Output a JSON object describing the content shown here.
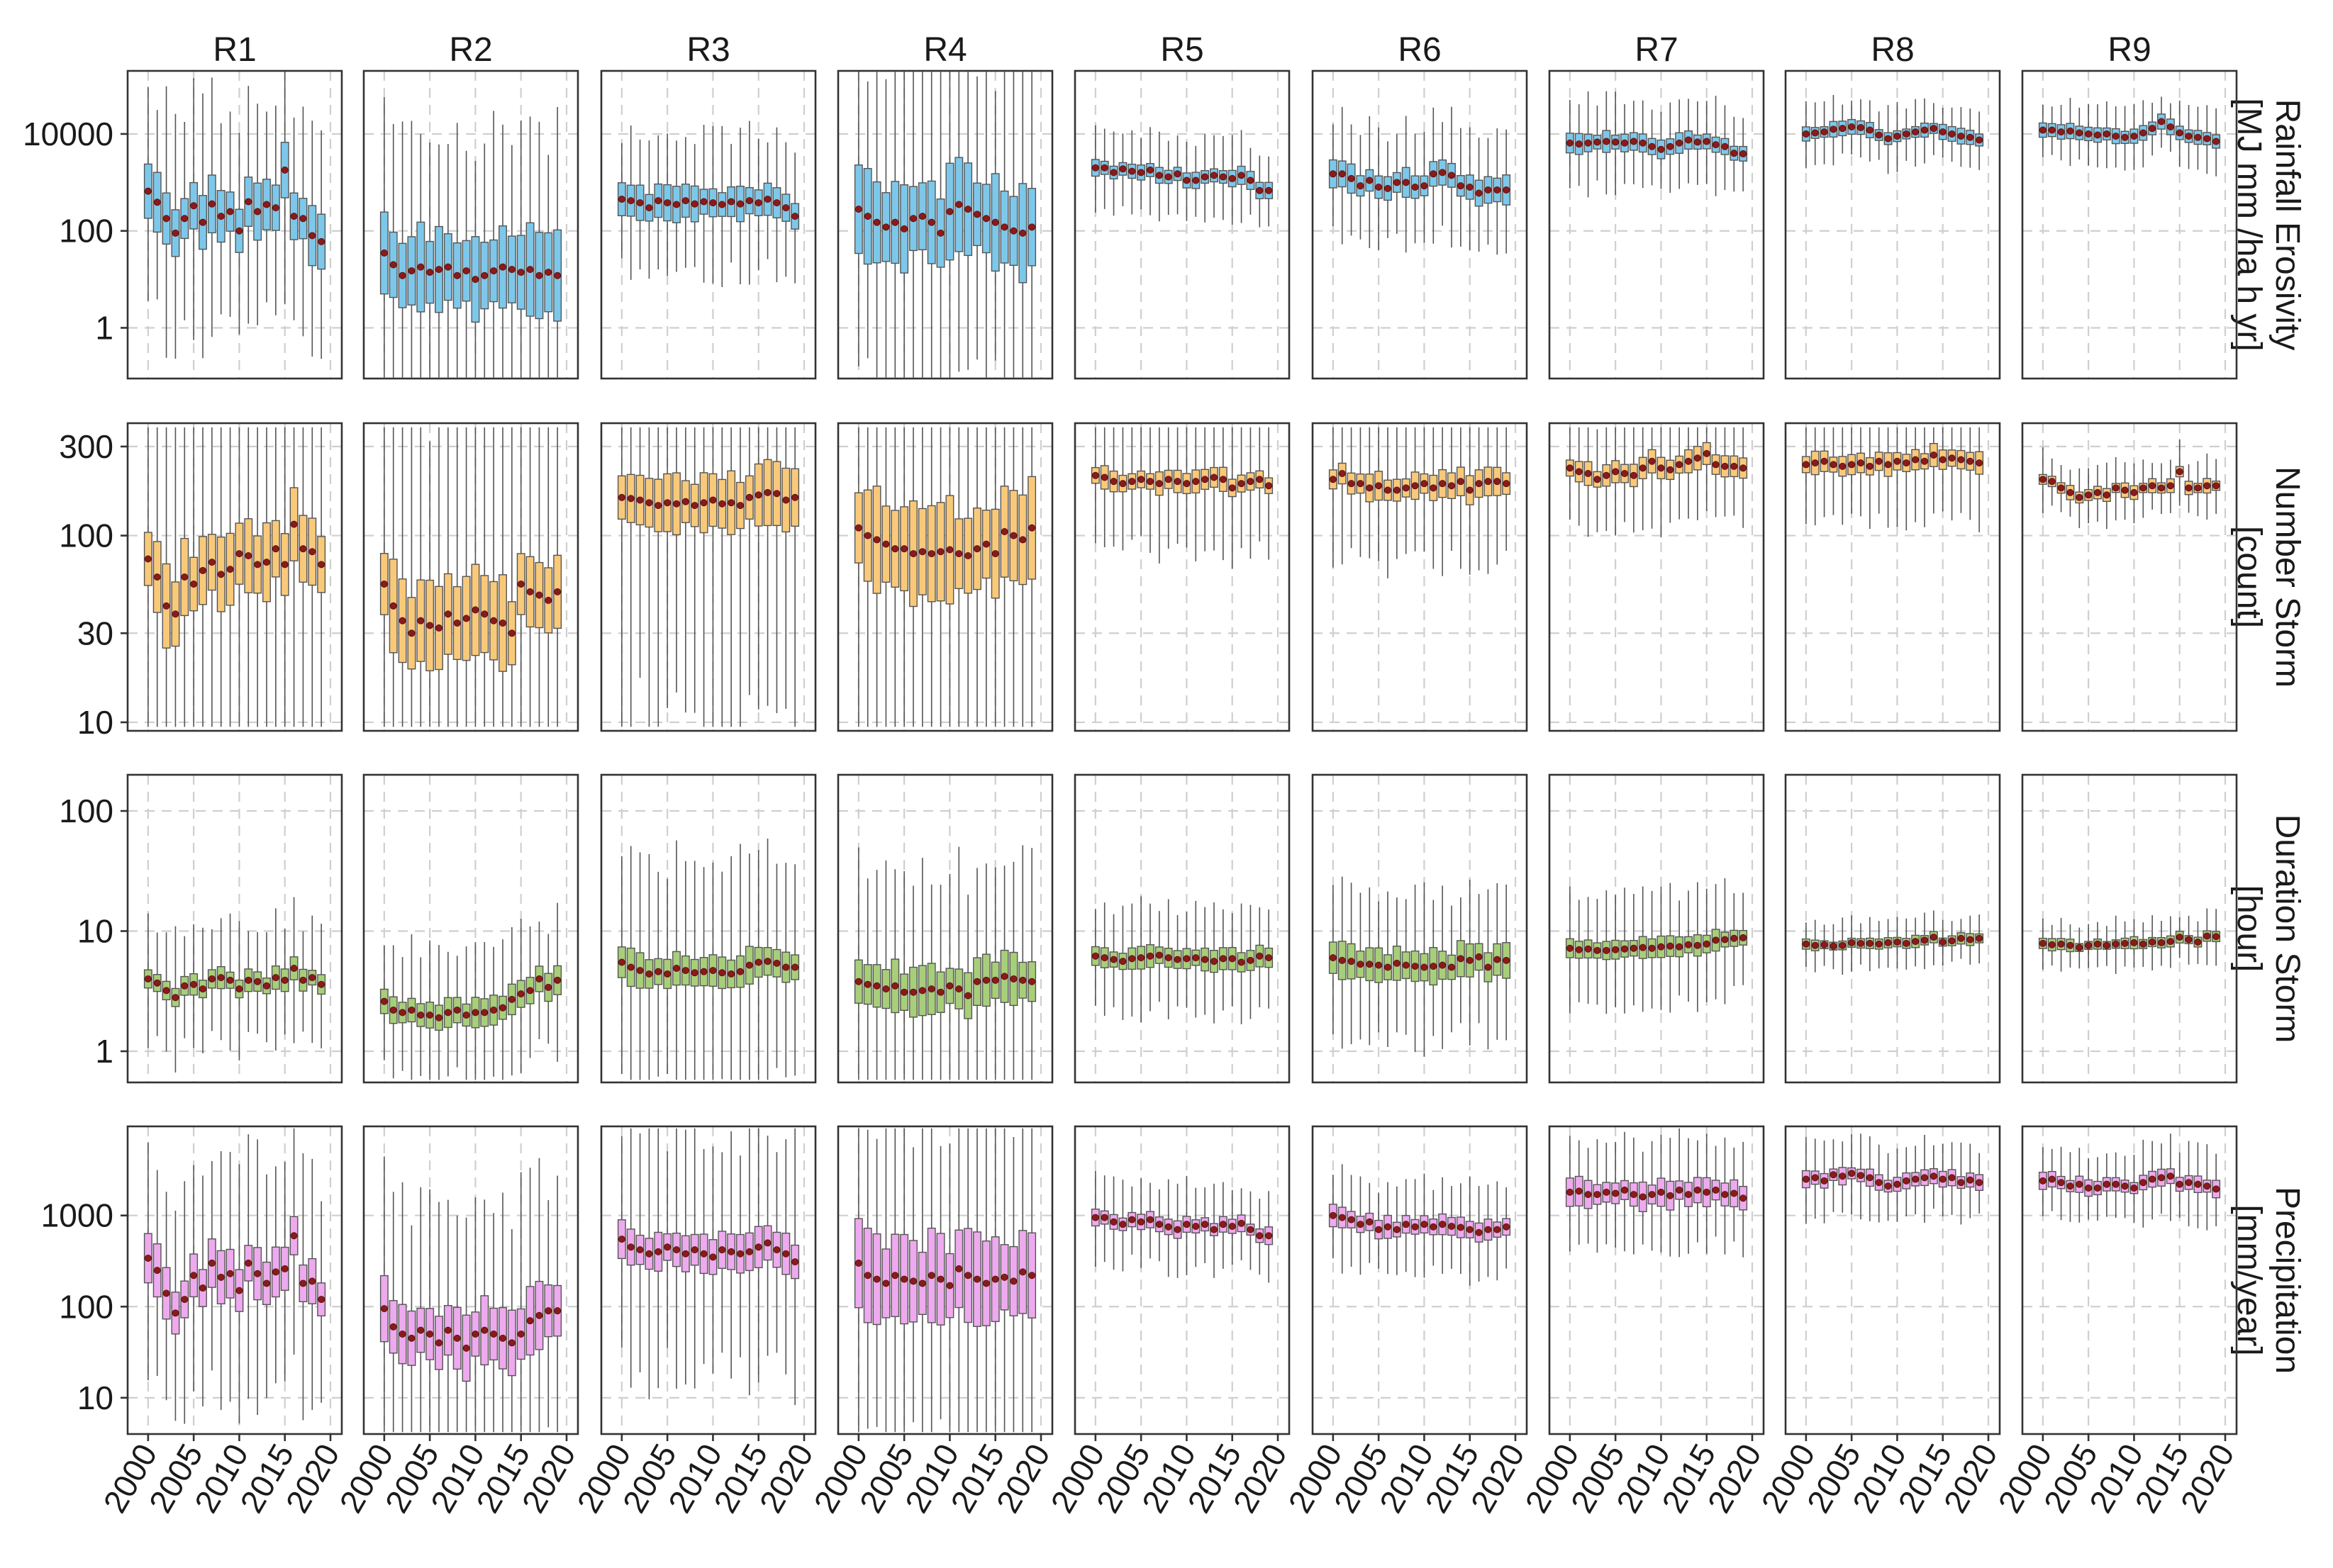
{
  "chart_data": {
    "type": "boxplot",
    "regions": [
      "R1",
      "R2",
      "R3",
      "R4",
      "R5",
      "R6",
      "R7",
      "R8",
      "R9"
    ],
    "years": [
      2000,
      2001,
      2002,
      2003,
      2004,
      2005,
      2006,
      2007,
      2008,
      2009,
      2010,
      2011,
      2012,
      2013,
      2014,
      2015,
      2016,
      2017,
      2018,
      2019
    ],
    "x_ticks": [
      2000,
      2005,
      2010,
      2015,
      2020
    ],
    "x_tick_labels": [
      "2000",
      "2005",
      "2010",
      "2015",
      "2020"
    ],
    "xlim": [
      1999,
      2020
    ],
    "rows": [
      {
        "key": "erosivity",
        "label_lines": [
          "Rainfall Erosivity",
          "[MJ mm /ha h yr]"
        ],
        "scale": "log",
        "ylim": [
          0.09,
          200000
        ],
        "y_ticks": [
          1,
          100,
          10000
        ],
        "y_tick_labels": [
          "1",
          "100",
          "10000"
        ],
        "fill": "#7dc8ea",
        "median_by_region": [
          [
            660,
            390,
            180,
            90,
            180,
            330,
            150,
            360,
            200,
            250,
            100,
            400,
            250,
            350,
            300,
            1800,
            200,
            180,
            80,
            60
          ],
          [
            35,
            20,
            12,
            15,
            18,
            14,
            16,
            18,
            12,
            15,
            10,
            12,
            15,
            18,
            16,
            14,
            16,
            12,
            14,
            12
          ],
          [
            450,
            420,
            380,
            300,
            420,
            380,
            350,
            420,
            360,
            400,
            380,
            350,
            400,
            360,
            420,
            380,
            450,
            380,
            300,
            200
          ],
          [
            280,
            200,
            150,
            120,
            150,
            110,
            180,
            200,
            150,
            90,
            250,
            350,
            280,
            220,
            180,
            150,
            120,
            100,
            90,
            120
          ],
          [
            2000,
            2000,
            1600,
            1900,
            1700,
            1600,
            1800,
            1400,
            1300,
            1500,
            1100,
            1100,
            1300,
            1400,
            1300,
            1200,
            1400,
            1100,
            680,
            680
          ],
          [
            1500,
            1500,
            1200,
            850,
            1100,
            800,
            750,
            1000,
            1000,
            800,
            850,
            1500,
            1600,
            1400,
            850,
            800,
            600,
            700,
            700,
            700
          ],
          [
            6500,
            6200,
            6500,
            6800,
            7000,
            6800,
            6500,
            7000,
            6500,
            5500,
            4800,
            5500,
            6500,
            7500,
            6800,
            7000,
            6000,
            5500,
            4000,
            3900
          ],
          [
            10000,
            10500,
            11000,
            12500,
            13000,
            14000,
            13500,
            12000,
            9500,
            8000,
            9000,
            10000,
            11000,
            12000,
            13000,
            11000,
            10000,
            9000,
            8500,
            7500
          ],
          [
            12000,
            12000,
            11000,
            11500,
            10500,
            10000,
            9500,
            10000,
            9000,
            8500,
            9000,
            10500,
            13000,
            18000,
            14000,
            10500,
            9000,
            8500,
            8000,
            7000
          ]
        ],
        "spread_by_region": [
          [
            1.0,
            2.3
          ],
          [
            1.5,
            3.0
          ],
          [
            0.6,
            1.4
          ],
          [
            1.6,
            3.2
          ],
          [
            0.3,
            0.8
          ],
          [
            0.5,
            1.2
          ],
          [
            0.35,
            0.9
          ],
          [
            0.25,
            0.6
          ],
          [
            0.25,
            0.6
          ]
        ]
      },
      {
        "key": "storm_count",
        "label_lines": [
          "Number Storm",
          "[count]"
        ],
        "scale": "log",
        "ylim": [
          9,
          400
        ],
        "y_ticks": [
          10,
          30,
          100,
          300
        ],
        "y_tick_labels": [
          "10",
          "30",
          "100",
          "300"
        ],
        "fill": "#f9c97a",
        "median_by_region": [
          [
            75,
            60,
            42,
            38,
            60,
            55,
            65,
            72,
            62,
            66,
            80,
            78,
            70,
            72,
            85,
            70,
            115,
            85,
            82,
            70
          ],
          [
            55,
            42,
            35,
            30,
            35,
            33,
            32,
            38,
            34,
            36,
            40,
            38,
            35,
            34,
            30,
            55,
            50,
            48,
            45,
            50
          ],
          [
            160,
            158,
            155,
            150,
            145,
            150,
            148,
            152,
            145,
            150,
            155,
            148,
            150,
            145,
            160,
            165,
            170,
            168,
            155,
            160
          ],
          [
            110,
            100,
            95,
            90,
            85,
            85,
            80,
            82,
            80,
            82,
            84,
            80,
            78,
            85,
            90,
            80,
            105,
            100,
            95,
            110
          ],
          [
            210,
            205,
            195,
            190,
            195,
            200,
            195,
            190,
            200,
            195,
            190,
            195,
            200,
            205,
            200,
            180,
            190,
            195,
            200,
            185
          ],
          [
            200,
            215,
            190,
            190,
            180,
            185,
            175,
            175,
            180,
            185,
            190,
            180,
            190,
            185,
            195,
            175,
            190,
            195,
            195,
            190
          ],
          [
            230,
            220,
            215,
            200,
            210,
            220,
            215,
            210,
            230,
            250,
            230,
            225,
            240,
            250,
            260,
            275,
            240,
            235,
            235,
            230
          ],
          [
            240,
            245,
            250,
            240,
            235,
            240,
            245,
            235,
            250,
            240,
            250,
            245,
            255,
            250,
            270,
            255,
            260,
            255,
            250,
            245
          ],
          [
            200,
            195,
            180,
            170,
            160,
            165,
            170,
            165,
            180,
            175,
            170,
            180,
            185,
            180,
            185,
            220,
            180,
            180,
            185,
            185
          ]
        ],
        "spread_by_region": [
          [
            0.35,
            1.1
          ],
          [
            0.4,
            1.2
          ],
          [
            0.28,
            1.1
          ],
          [
            0.45,
            1.3
          ],
          [
            0.1,
            0.35
          ],
          [
            0.12,
            0.4
          ],
          [
            0.1,
            0.3
          ],
          [
            0.1,
            0.3
          ],
          [
            0.06,
            0.15
          ]
        ]
      },
      {
        "key": "storm_duration",
        "label_lines": [
          "Duration Storm",
          "[hour]"
        ],
        "scale": "log",
        "ylim": [
          0.55,
          200
        ],
        "y_ticks": [
          1,
          10,
          100
        ],
        "y_tick_labels": [
          "1",
          "10",
          "100"
        ],
        "fill": "#a7cf79",
        "median_by_region": [
          [
            4,
            3.7,
            3.2,
            2.8,
            3.5,
            3.6,
            3.3,
            4.0,
            4.1,
            3.9,
            3.3,
            3.9,
            3.8,
            3.5,
            4.1,
            3.9,
            4.9,
            3.9,
            4.1,
            3.6
          ],
          [
            2.6,
            2.2,
            2.1,
            2.2,
            2.0,
            2.0,
            1.9,
            2.1,
            2.2,
            2.0,
            2.1,
            2.1,
            2.2,
            2.3,
            2.7,
            3.0,
            3.2,
            4.0,
            3.4,
            3.9
          ],
          [
            5.5,
            5.0,
            4.7,
            4.4,
            4.6,
            4.4,
            4.9,
            4.7,
            4.5,
            4.6,
            4.7,
            4.5,
            4.4,
            4.6,
            5.2,
            5.5,
            5.6,
            5.4,
            5.0,
            5.0
          ],
          [
            3.8,
            3.6,
            3.5,
            3.3,
            3.5,
            3.1,
            3.1,
            3.2,
            3.3,
            3.1,
            3.5,
            3.3,
            2.9,
            3.8,
            3.9,
            3.9,
            4.2,
            4.0,
            3.9,
            3.8
          ],
          [
            6.2,
            6.0,
            5.8,
            5.6,
            5.9,
            6.0,
            6.2,
            6.3,
            6.0,
            5.8,
            5.9,
            6.0,
            5.8,
            5.6,
            5.9,
            5.9,
            5.5,
            5.7,
            6.2,
            6.0
          ],
          [
            6,
            5.7,
            5.6,
            5.3,
            5.3,
            5.2,
            5.0,
            5.4,
            5.2,
            5.1,
            5.0,
            5.1,
            5.2,
            5.0,
            5.9,
            5.7,
            6.1,
            5.0,
            5.8,
            5.7
          ],
          [
            7.2,
            7.0,
            7.1,
            6.9,
            6.9,
            7.0,
            7.1,
            7.2,
            7.3,
            7.2,
            7.4,
            7.5,
            7.4,
            7.7,
            7.6,
            7.8,
            8.4,
            8.5,
            8.7,
            8.8
          ],
          [
            7.8,
            7.6,
            7.7,
            7.5,
            7.6,
            8.0,
            7.9,
            7.9,
            7.8,
            8.0,
            8.1,
            7.9,
            8.2,
            8.4,
            8.9,
            8.1,
            8.3,
            8.7,
            8.5,
            8.7
          ],
          [
            7.9,
            7.7,
            7.8,
            7.6,
            7.3,
            7.6,
            7.8,
            7.6,
            7.8,
            7.9,
            8.0,
            7.8,
            8.1,
            8.0,
            8.2,
            8.9,
            8.5,
            8.1,
            9.1,
            9.0
          ]
        ],
        "spread_by_region": [
          [
            0.15,
            0.5
          ],
          [
            0.2,
            0.55
          ],
          [
            0.25,
            0.9
          ],
          [
            0.35,
            1.0
          ],
          [
            0.15,
            0.45
          ],
          [
            0.25,
            0.6
          ],
          [
            0.15,
            0.45
          ],
          [
            0.08,
            0.2
          ],
          [
            0.08,
            0.2
          ]
        ]
      },
      {
        "key": "precipitation",
        "label_lines": [
          "Precipitation",
          "[mm/year]"
        ],
        "scale": "log",
        "ylim": [
          4,
          9500
        ],
        "y_ticks": [
          10,
          100,
          1000
        ],
        "y_tick_labels": [
          "10",
          "100",
          "1000"
        ],
        "fill": "#eeaaee",
        "median_by_region": [
          [
            340,
            250,
            140,
            85,
            120,
            220,
            160,
            300,
            210,
            230,
            150,
            300,
            230,
            180,
            240,
            260,
            600,
            180,
            190,
            120
          ],
          [
            95,
            60,
            50,
            45,
            55,
            50,
            40,
            55,
            45,
            35,
            50,
            55,
            50,
            45,
            40,
            50,
            70,
            80,
            90,
            90
          ],
          [
            550,
            450,
            420,
            380,
            400,
            450,
            420,
            380,
            420,
            380,
            350,
            420,
            400,
            380,
            400,
            450,
            500,
            420,
            380,
            310
          ],
          [
            300,
            220,
            200,
            180,
            220,
            200,
            190,
            180,
            220,
            200,
            170,
            260,
            220,
            200,
            180,
            200,
            210,
            190,
            240,
            220
          ],
          [
            950,
            950,
            850,
            800,
            900,
            850,
            900,
            800,
            750,
            700,
            800,
            760,
            800,
            700,
            800,
            760,
            820,
            700,
            600,
            600
          ],
          [
            1000,
            950,
            900,
            800,
            850,
            700,
            750,
            700,
            800,
            750,
            800,
            750,
            800,
            760,
            740,
            700,
            650,
            700,
            700,
            750
          ],
          [
            1800,
            1850,
            1700,
            1700,
            1800,
            1750,
            1900,
            1700,
            1600,
            1700,
            1800,
            1650,
            1900,
            1700,
            1900,
            1800,
            1900,
            1700,
            1750,
            1550
          ],
          [
            2500,
            2600,
            2400,
            2800,
            2700,
            2900,
            2750,
            2600,
            2300,
            2100,
            2200,
            2400,
            2500,
            2600,
            2700,
            2500,
            2600,
            2300,
            2450,
            2300
          ],
          [
            2400,
            2500,
            2300,
            2100,
            2200,
            2000,
            2000,
            2200,
            2200,
            2100,
            2000,
            2300,
            2500,
            2600,
            2700,
            2200,
            2300,
            2200,
            2100,
            1950
          ]
        ],
        "spread_by_region": [
          [
            0.45,
            1.3
          ],
          [
            0.6,
            1.5
          ],
          [
            0.35,
            1.3
          ],
          [
            0.8,
            1.8
          ],
          [
            0.15,
            0.45
          ],
          [
            0.2,
            0.5
          ],
          [
            0.25,
            0.6
          ],
          [
            0.15,
            0.4
          ],
          [
            0.15,
            0.4
          ]
        ]
      }
    ],
    "grid": true,
    "legend": "none"
  },
  "colors": {
    "mean_marker": "#8b1a1a",
    "median_line": "#222222",
    "grid": "#cfcfcf",
    "panel_border": "#333333"
  }
}
